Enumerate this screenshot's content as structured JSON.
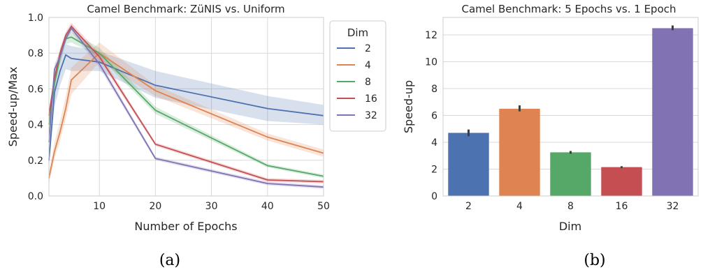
{
  "chart_data": [
    {
      "type": "line",
      "title": "Camel Benchmark: ZüNIS vs. Uniform",
      "xlabel": "Number of Epochs",
      "ylabel": "Speed-up/Max",
      "xlim": [
        1,
        50
      ],
      "ylim": [
        0,
        1.0
      ],
      "xticks": [
        "10",
        "20",
        "30",
        "40",
        "50"
      ],
      "yticks": [
        "0.0",
        "0.2",
        "0.4",
        "0.6",
        "0.8",
        "1.0"
      ],
      "grid": true,
      "legend": {
        "title": "Dim",
        "placement": "right"
      },
      "x": [
        1,
        2,
        3,
        4,
        5,
        10,
        20,
        40,
        50
      ],
      "series": [
        {
          "name": "2",
          "color": "#4c72b0",
          "values": [
            0.2,
            0.58,
            0.7,
            0.79,
            0.77,
            0.75,
            0.62,
            0.49,
            0.45
          ],
          "lower": [
            0.15,
            0.5,
            0.62,
            0.71,
            0.7,
            0.7,
            0.55,
            0.42,
            0.4
          ],
          "upper": [
            0.27,
            0.65,
            0.77,
            0.85,
            0.84,
            0.81,
            0.7,
            0.56,
            0.51
          ]
        },
        {
          "name": "4",
          "color": "#dd8452",
          "values": [
            0.1,
            0.25,
            0.36,
            0.49,
            0.65,
            0.8,
            0.59,
            0.33,
            0.24
          ],
          "lower": [
            0.07,
            0.21,
            0.31,
            0.43,
            0.57,
            0.75,
            0.56,
            0.31,
            0.22
          ],
          "upper": [
            0.14,
            0.3,
            0.42,
            0.56,
            0.72,
            0.86,
            0.62,
            0.35,
            0.26
          ]
        },
        {
          "name": "8",
          "color": "#55a868",
          "values": [
            0.4,
            0.63,
            0.78,
            0.88,
            0.89,
            0.8,
            0.48,
            0.17,
            0.11
          ],
          "lower": [
            0.36,
            0.59,
            0.74,
            0.85,
            0.86,
            0.78,
            0.46,
            0.16,
            0.1
          ],
          "upper": [
            0.44,
            0.67,
            0.82,
            0.91,
            0.92,
            0.83,
            0.5,
            0.18,
            0.12
          ]
        },
        {
          "name": "16",
          "color": "#c44e52",
          "values": [
            0.45,
            0.66,
            0.8,
            0.9,
            0.95,
            0.78,
            0.29,
            0.09,
            0.08
          ],
          "lower": [
            0.42,
            0.63,
            0.77,
            0.88,
            0.93,
            0.76,
            0.28,
            0.08,
            0.07
          ],
          "upper": [
            0.48,
            0.69,
            0.83,
            0.92,
            0.97,
            0.8,
            0.3,
            0.1,
            0.09
          ]
        },
        {
          "name": "32",
          "color": "#8172b3",
          "values": [
            0.3,
            0.71,
            0.78,
            0.88,
            0.94,
            0.74,
            0.21,
            0.07,
            0.05
          ],
          "lower": [
            0.27,
            0.68,
            0.75,
            0.86,
            0.92,
            0.72,
            0.2,
            0.06,
            0.04
          ],
          "upper": [
            0.33,
            0.74,
            0.81,
            0.9,
            0.96,
            0.76,
            0.22,
            0.08,
            0.06
          ]
        }
      ]
    },
    {
      "type": "bar",
      "title": "Camel Benchmark: 5 Epochs vs. 1 Epoch",
      "xlabel": "Dim",
      "ylabel": "Speed-up",
      "categories": [
        "2",
        "4",
        "8",
        "16",
        "32"
      ],
      "values": [
        4.7,
        6.5,
        3.25,
        2.15,
        12.5
      ],
      "errors": [
        [
          4.45,
          4.95
        ],
        [
          6.3,
          6.75
        ],
        [
          3.15,
          3.35
        ],
        [
          2.08,
          2.22
        ],
        [
          12.35,
          12.7
        ]
      ],
      "colors": [
        "#4c72b0",
        "#dd8452",
        "#55a868",
        "#c44e52",
        "#8172b3"
      ],
      "ylim": [
        0,
        13.3
      ],
      "yticks": [
        "0",
        "2",
        "4",
        "6",
        "8",
        "10",
        "12"
      ],
      "grid": true
    }
  ],
  "captions": [
    "(a)",
    "(b)"
  ]
}
